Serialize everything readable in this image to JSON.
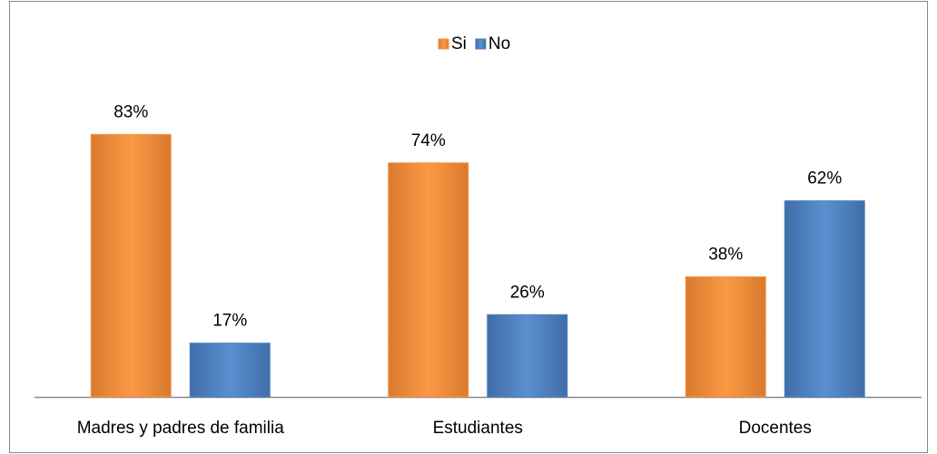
{
  "chart_data": {
    "type": "bar",
    "categories": [
      "Madres y padres de familia",
      "Estudiantes",
      "Docentes"
    ],
    "series": [
      {
        "name": "Si",
        "color": "#f79646",
        "values": [
          83,
          74,
          38
        ],
        "value_labels": [
          "83%",
          "74%",
          "38%"
        ]
      },
      {
        "name": "No",
        "color": "#4f81bd",
        "values": [
          17,
          26,
          62
        ],
        "value_labels": [
          "17%",
          "26%",
          "62%"
        ]
      }
    ],
    "legend": "top"
  }
}
